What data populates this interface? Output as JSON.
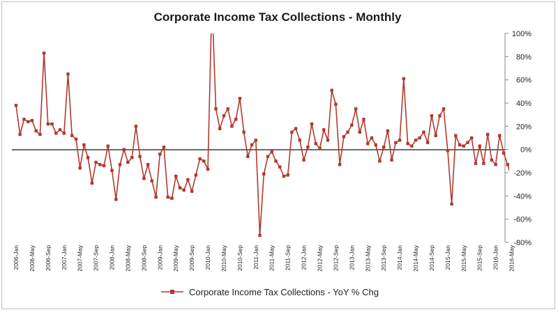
{
  "chart_data": {
    "type": "line",
    "title": "Corporate Income Tax Collections - Monthly",
    "xlabel": "",
    "ylabel": "",
    "ylim": [
      -80,
      100
    ],
    "y_ticks": [
      "100%",
      "80%",
      "60%",
      "40%",
      "20%",
      "0%",
      "-20%",
      "-40%",
      "-60%",
      "-80%"
    ],
    "y_tick_values": [
      100,
      80,
      60,
      40,
      20,
      0,
      -20,
      -40,
      -60,
      -80
    ],
    "x_tick_labels": [
      "2006-Jan",
      "2006-May",
      "2006-Sep",
      "2007-Jan",
      "2007-May",
      "2007-Sep",
      "2008-Jan",
      "2008-May",
      "2008-Sep",
      "2009-Jan",
      "2009-May",
      "2009-Sep",
      "2010-Jan",
      "2010-May",
      "2010-Sep",
      "2011-Jan",
      "2011-May",
      "2011-Sep",
      "2012-Jan",
      "2012-May",
      "2012-Sep",
      "2013-Jan",
      "2013-May",
      "2013-Sep",
      "2014-Jan",
      "2014-May",
      "2014-Sep",
      "2015-Jan",
      "2015-May",
      "2015-Sep",
      "2016-Jan",
      "2016-May"
    ],
    "grid": false,
    "legend_position": "bottom",
    "series_color": "#b03a2e",
    "series": [
      {
        "name": "Corporate Income Tax Collections - YoY % Chg",
        "values": [
          38,
          13,
          26,
          24,
          25,
          16,
          13,
          83,
          22,
          22,
          14,
          17,
          14,
          65,
          12,
          9,
          -16,
          4,
          -7,
          -29,
          -11,
          -13,
          -14,
          3,
          -18,
          -43,
          -13,
          0,
          -11,
          -7,
          20,
          -6,
          -25,
          -13,
          -27,
          -41,
          -4,
          2,
          -41,
          -42,
          -23,
          -33,
          -35,
          -26,
          -36,
          -22,
          -8,
          -10,
          -17,
          130,
          35,
          18,
          29,
          35,
          20,
          26,
          44,
          15,
          -6,
          4,
          8,
          -74,
          -21,
          -6,
          -2,
          -10,
          -15,
          -23,
          -22,
          15,
          18,
          8,
          -9,
          2,
          22,
          5,
          1,
          17,
          8,
          51,
          39,
          -13,
          11,
          15,
          21,
          35,
          15,
          26,
          5,
          10,
          4,
          -10,
          2,
          16,
          -9,
          6,
          8,
          61,
          5,
          3,
          8,
          10,
          15,
          6,
          29,
          12,
          29,
          35,
          -1,
          -47,
          12,
          4,
          3,
          6,
          10,
          -12,
          3,
          -12,
          13,
          -9,
          -13,
          12,
          -3,
          -13,
          -25,
          -16,
          -20
        ]
      }
    ]
  }
}
